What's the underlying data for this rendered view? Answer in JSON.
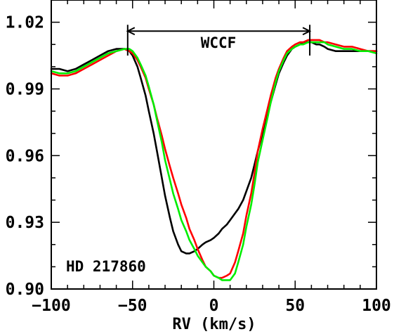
{
  "chart_data": {
    "type": "line",
    "xlabel": "RV (km/s)",
    "ylabel": "",
    "xlim": [
      -100,
      100
    ],
    "ylim": [
      0.9,
      1.03
    ],
    "x_ticks": [
      {
        "value": -100,
        "label": "−100"
      },
      {
        "value": -50,
        "label": "−50"
      },
      {
        "value": 0,
        "label": "0"
      },
      {
        "value": 50,
        "label": "50"
      },
      {
        "value": 100,
        "label": "100"
      }
    ],
    "y_ticks": [
      {
        "value": 0.9,
        "label": "0.90"
      },
      {
        "value": 0.93,
        "label": "0.93"
      },
      {
        "value": 0.96,
        "label": "0.96"
      },
      {
        "value": 0.99,
        "label": "0.99"
      },
      {
        "value": 1.02,
        "label": "1.02"
      }
    ],
    "x_minor_step": 10,
    "y_minor_step": 0.01,
    "annotations": {
      "star": "HD 217860",
      "wccf": {
        "label": "WCCF",
        "x_start": -53,
        "x_end": 59,
        "y": 1.016,
        "y_bottom": 1.005
      }
    },
    "series": [
      {
        "color": "#000000",
        "x": [
          -100,
          -95,
          -90,
          -85,
          -80,
          -75,
          -70,
          -65,
          -60,
          -55,
          -52,
          -50,
          -47,
          -45,
          -42,
          -40,
          -37,
          -35,
          -32,
          -30,
          -27,
          -25,
          -22,
          -20,
          -17,
          -15,
          -12,
          -10,
          -7,
          -5,
          -2,
          0,
          3,
          5,
          8,
          10,
          13,
          15,
          18,
          20,
          23,
          25,
          27,
          30,
          33,
          35,
          38,
          40,
          43,
          45,
          48,
          50,
          53,
          55,
          58,
          60,
          63,
          65,
          68,
          70,
          75,
          80,
          85,
          90,
          95,
          100
        ],
        "y": [
          0.999,
          0.999,
          0.998,
          0.999,
          1.001,
          1.003,
          1.005,
          1.007,
          1.008,
          1.008,
          1.007,
          1.005,
          1.0,
          0.995,
          0.987,
          0.98,
          0.97,
          0.962,
          0.95,
          0.942,
          0.932,
          0.926,
          0.92,
          0.917,
          0.916,
          0.916,
          0.917,
          0.918,
          0.92,
          0.921,
          0.922,
          0.923,
          0.925,
          0.927,
          0.929,
          0.931,
          0.934,
          0.936,
          0.94,
          0.944,
          0.95,
          0.956,
          0.962,
          0.97,
          0.978,
          0.984,
          0.992,
          0.997,
          1.002,
          1.005,
          1.008,
          1.009,
          1.01,
          1.011,
          1.011,
          1.011,
          1.01,
          1.01,
          1.009,
          1.008,
          1.007,
          1.007,
          1.007,
          1.007,
          1.007,
          1.007
        ]
      },
      {
        "color": "#ff0000",
        "x": [
          -100,
          -95,
          -90,
          -85,
          -80,
          -75,
          -70,
          -65,
          -60,
          -55,
          -52,
          -50,
          -47,
          -45,
          -42,
          -40,
          -37,
          -35,
          -32,
          -30,
          -27,
          -25,
          -22,
          -20,
          -17,
          -15,
          -12,
          -10,
          -7,
          -5,
          -2,
          0,
          3,
          5,
          8,
          10,
          13,
          15,
          18,
          20,
          23,
          25,
          27,
          30,
          33,
          35,
          38,
          40,
          43,
          45,
          48,
          50,
          53,
          55,
          58,
          60,
          63,
          65,
          68,
          70,
          75,
          80,
          85,
          90,
          95,
          100
        ],
        "y": [
          0.997,
          0.996,
          0.996,
          0.997,
          0.999,
          1.001,
          1.003,
          1.005,
          1.007,
          1.008,
          1.007,
          1.006,
          1.003,
          1.0,
          0.995,
          0.99,
          0.983,
          0.977,
          0.969,
          0.963,
          0.955,
          0.95,
          0.943,
          0.938,
          0.932,
          0.927,
          0.922,
          0.918,
          0.913,
          0.91,
          0.908,
          0.906,
          0.905,
          0.905,
          0.906,
          0.907,
          0.912,
          0.917,
          0.925,
          0.933,
          0.943,
          0.952,
          0.962,
          0.972,
          0.981,
          0.987,
          0.995,
          0.999,
          1.004,
          1.007,
          1.009,
          1.01,
          1.011,
          1.011,
          1.012,
          1.012,
          1.012,
          1.012,
          1.011,
          1.011,
          1.01,
          1.009,
          1.009,
          1.008,
          1.007,
          1.007
        ]
      },
      {
        "color": "#00ee00",
        "x": [
          -100,
          -95,
          -90,
          -85,
          -80,
          -75,
          -70,
          -65,
          -60,
          -55,
          -52,
          -50,
          -47,
          -45,
          -42,
          -40,
          -37,
          -35,
          -32,
          -30,
          -27,
          -25,
          -22,
          -20,
          -17,
          -15,
          -12,
          -10,
          -7,
          -5,
          -2,
          0,
          3,
          5,
          8,
          10,
          13,
          15,
          18,
          20,
          23,
          25,
          27,
          30,
          33,
          35,
          38,
          40,
          43,
          45,
          48,
          50,
          53,
          55,
          58,
          60,
          63,
          65,
          68,
          70,
          75,
          80,
          85,
          90,
          95,
          100
        ],
        "y": [
          0.998,
          0.997,
          0.997,
          0.998,
          1.0,
          1.002,
          1.004,
          1.006,
          1.007,
          1.008,
          1.008,
          1.007,
          1.004,
          1.001,
          0.996,
          0.991,
          0.983,
          0.976,
          0.966,
          0.958,
          0.949,
          0.943,
          0.936,
          0.931,
          0.926,
          0.922,
          0.918,
          0.915,
          0.912,
          0.91,
          0.908,
          0.906,
          0.905,
          0.904,
          0.904,
          0.904,
          0.907,
          0.912,
          0.92,
          0.928,
          0.938,
          0.947,
          0.957,
          0.967,
          0.977,
          0.984,
          0.993,
          0.998,
          1.003,
          1.006,
          1.008,
          1.009,
          1.01,
          1.01,
          1.011,
          1.011,
          1.011,
          1.011,
          1.011,
          1.01,
          1.009,
          1.008,
          1.008,
          1.007,
          1.007,
          1.006
        ]
      }
    ]
  }
}
